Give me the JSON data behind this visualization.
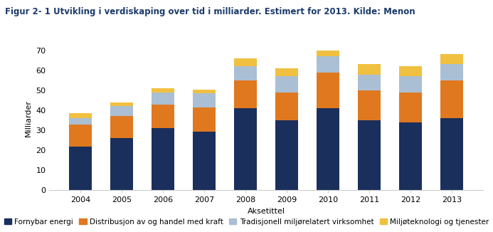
{
  "years": [
    "2004",
    "2005",
    "2006",
    "2007",
    "2008",
    "2009",
    "2010",
    "2011",
    "2012",
    "2013"
  ],
  "fornybar_energi": [
    22,
    26,
    31,
    29.5,
    41,
    35,
    41,
    35,
    34,
    36
  ],
  "distribusjon": [
    11,
    11,
    12,
    12,
    14,
    14,
    18,
    15,
    15,
    19
  ],
  "tradisjonell": [
    3,
    5,
    6,
    7,
    7,
    8,
    8,
    8,
    8,
    8
  ],
  "miljoteknologi": [
    2.5,
    2,
    2,
    2,
    4,
    4,
    3,
    5,
    5,
    5
  ],
  "colors": {
    "fornybar_energi": "#1b2f5c",
    "distribusjon": "#e07820",
    "tradisjonell": "#aabfd4",
    "miljoteknologi": "#f0c040"
  },
  "title": "Figur 2- 1 Utvikling i verdiskaping over tid i milliarder. Estimert for 2013. Kilde: Menon",
  "xlabel": "Aksetittel",
  "ylabel": "Milliarder",
  "ylim": [
    0,
    72
  ],
  "yticks": [
    0,
    10,
    20,
    30,
    40,
    50,
    60,
    70
  ],
  "legend_labels": [
    "Fornybar energi",
    "Distribusjon av og handel med kraft",
    "Tradisjonell miljørelatert virksomhet",
    "Miljøteknologi og tjenester"
  ],
  "title_color": "#1b3a6b",
  "title_fontsize": 8.5,
  "axis_label_fontsize": 8,
  "tick_fontsize": 8,
  "legend_fontsize": 7.5
}
